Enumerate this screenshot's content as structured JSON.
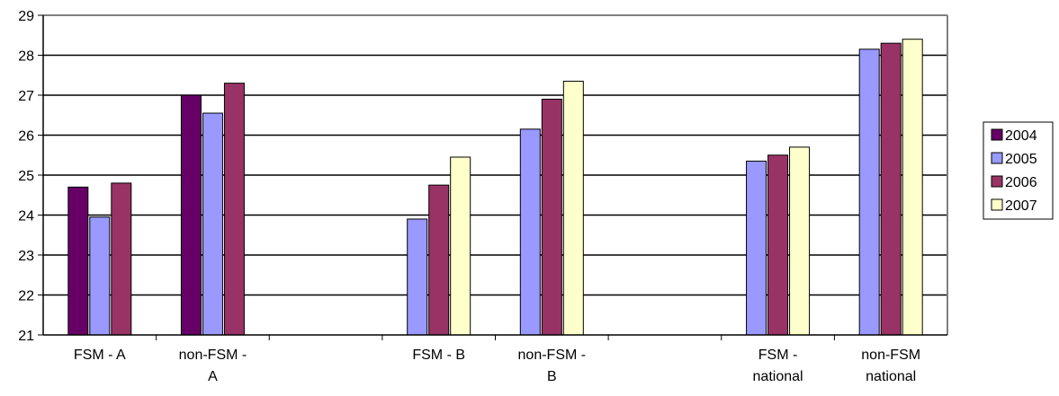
{
  "chart_data": {
    "type": "bar",
    "categories": [
      [
        "FSM - A"
      ],
      [
        "non-FSM -",
        "A"
      ],
      [
        ""
      ],
      [
        "FSM - B"
      ],
      [
        "non-FSM -",
        "B"
      ],
      [
        ""
      ],
      [
        "FSM -",
        "national"
      ],
      [
        "non-FSM",
        "national"
      ]
    ],
    "series": [
      {
        "name": "2004",
        "color": "#660066",
        "values": [
          24.7,
          27.0,
          null,
          null,
          null,
          null,
          null,
          null
        ]
      },
      {
        "name": "2005",
        "color": "#9999FF",
        "values": [
          23.95,
          26.55,
          null,
          23.9,
          26.15,
          null,
          25.35,
          28.15
        ]
      },
      {
        "name": "2006",
        "color": "#993366",
        "values": [
          24.8,
          27.3,
          null,
          24.75,
          26.9,
          null,
          25.5,
          28.3
        ]
      },
      {
        "name": "2007",
        "color": "#FFFFCC",
        "values": [
          null,
          null,
          null,
          25.45,
          27.35,
          null,
          25.7,
          28.4
        ]
      }
    ],
    "ylim": [
      21,
      29
    ],
    "yticks": [
      21,
      22,
      23,
      24,
      25,
      26,
      27,
      28,
      29
    ],
    "gridlines": true,
    "legend_position": "right"
  }
}
